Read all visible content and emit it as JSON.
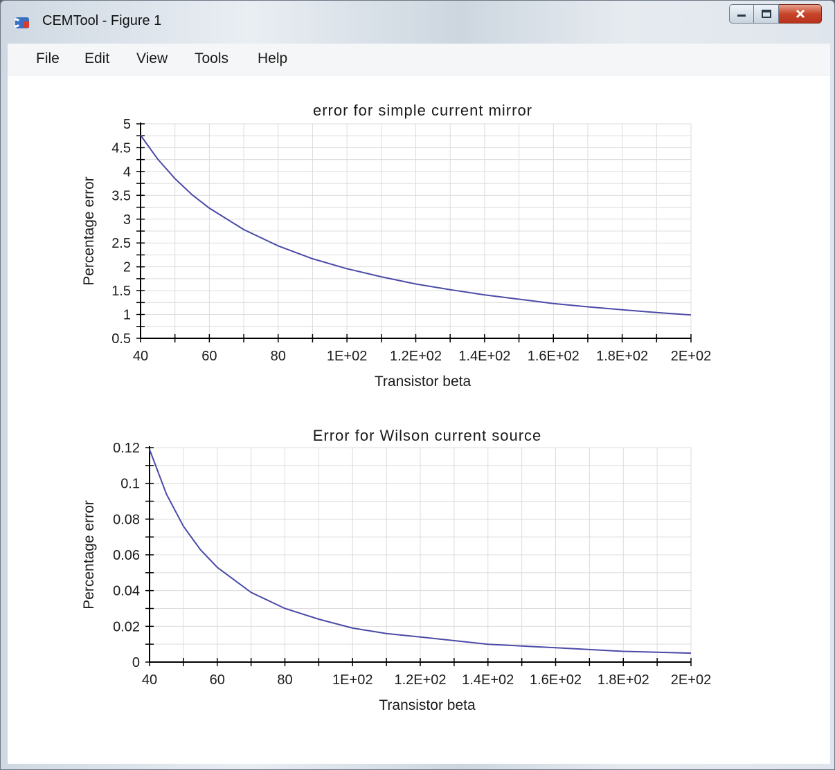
{
  "window": {
    "title": "CEMTool - Figure 1",
    "icon": "cemtool-app-icon",
    "caption_buttons": [
      "minimize-icon",
      "maximize-icon",
      "close-icon"
    ]
  },
  "menu": {
    "items": [
      "File",
      "Edit",
      "View",
      "Tools",
      "Help"
    ]
  },
  "colors": {
    "curve": "#4a4aa8",
    "grid": "#dcdcdc",
    "axis": "#000000"
  },
  "chart_data": [
    {
      "type": "line",
      "title": "error for simple current mirror",
      "xlabel": "Transistor beta",
      "ylabel": "Percentage error",
      "xlim": [
        40,
        200
      ],
      "ylim": [
        0.5,
        5
      ],
      "xticks": [
        40,
        60,
        80,
        100,
        120,
        140,
        160,
        180,
        200
      ],
      "xtick_labels": [
        "40",
        "60",
        "80",
        "1E+02",
        "1.2E+02",
        "1.4E+02",
        "1.6E+02",
        "1.8E+02",
        "2E+02"
      ],
      "yticks": [
        0.5,
        1,
        1.5,
        2,
        2.5,
        3,
        3.5,
        4,
        4.5,
        5
      ],
      "ytick_labels": [
        "0.5",
        "1",
        "1.5",
        "2",
        "2.5",
        "3",
        "3.5",
        "4",
        "4.5",
        "5"
      ],
      "grid": true,
      "series": [
        {
          "x": [
            40,
            45,
            50,
            55,
            60,
            70,
            80,
            90,
            100,
            110,
            120,
            130,
            140,
            150,
            160,
            170,
            180,
            190,
            200
          ],
          "y": [
            4.76,
            4.26,
            3.85,
            3.51,
            3.23,
            2.78,
            2.44,
            2.17,
            1.96,
            1.79,
            1.64,
            1.52,
            1.41,
            1.32,
            1.23,
            1.16,
            1.1,
            1.04,
            0.99
          ]
        }
      ]
    },
    {
      "type": "line",
      "title": "Error for Wilson current source",
      "xlabel": "Transistor beta",
      "ylabel": "Percentage error",
      "xlim": [
        40,
        200
      ],
      "ylim": [
        0,
        0.12
      ],
      "xticks": [
        40,
        60,
        80,
        100,
        120,
        140,
        160,
        180,
        200
      ],
      "xtick_labels": [
        "40",
        "60",
        "80",
        "1E+02",
        "1.2E+02",
        "1.4E+02",
        "1.6E+02",
        "1.8E+02",
        "2E+02"
      ],
      "yticks": [
        0,
        0.02,
        0.04,
        0.06,
        0.08,
        0.1,
        0.12
      ],
      "ytick_labels": [
        "0",
        "0.02",
        "0.04",
        "0.06",
        "0.08",
        "0.1",
        "0.12"
      ],
      "grid": true,
      "series": [
        {
          "x": [
            40,
            45,
            50,
            55,
            60,
            70,
            80,
            90,
            100,
            110,
            120,
            130,
            140,
            150,
            160,
            170,
            180,
            190,
            200
          ],
          "y": [
            0.119,
            0.094,
            0.076,
            0.063,
            0.053,
            0.039,
            0.03,
            0.024,
            0.019,
            0.016,
            0.014,
            0.012,
            0.01,
            0.009,
            0.008,
            0.007,
            0.006,
            0.0055,
            0.005
          ]
        }
      ]
    }
  ]
}
